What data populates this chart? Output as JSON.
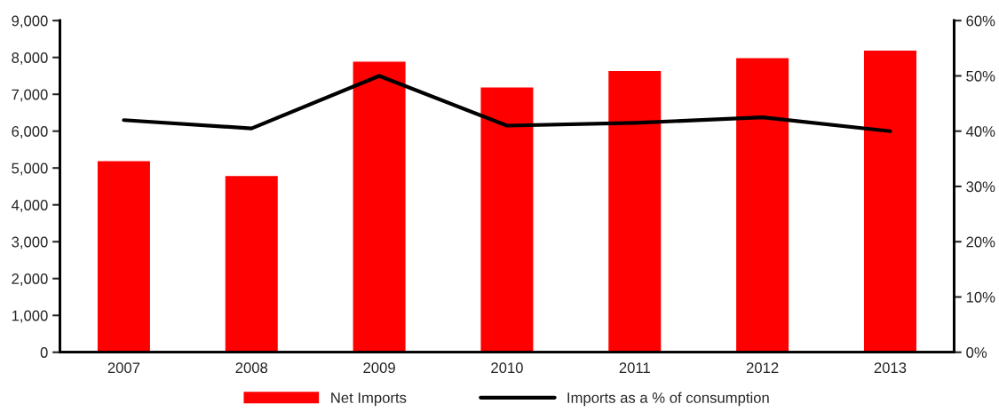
{
  "chart_data": {
    "type": "bar",
    "categories": [
      "2007",
      "2008",
      "2009",
      "2010",
      "2011",
      "2012",
      "2013"
    ],
    "series": [
      {
        "name": "Net Imports",
        "color": "#ff0000",
        "values": [
          5200,
          4800,
          7900,
          7200,
          7650,
          8000,
          8200
        ]
      },
      {
        "name": "Imports as a % of consumption",
        "type": "line",
        "axis": "y2",
        "color": "#000000",
        "values": [
          42,
          40.5,
          50,
          41,
          41.5,
          42.5,
          40
        ]
      }
    ],
    "ylim": [
      0,
      9000
    ],
    "yticks": [
      {
        "value": 0,
        "label": "0"
      },
      {
        "value": 1000,
        "label": "1,000"
      },
      {
        "value": 2000,
        "label": "2,000"
      },
      {
        "value": 3000,
        "label": "3,000"
      },
      {
        "value": 4000,
        "label": "4,000"
      },
      {
        "value": 5000,
        "label": "5,000"
      },
      {
        "value": 6000,
        "label": "6,000"
      },
      {
        "value": 7000,
        "label": "7,000"
      },
      {
        "value": 8000,
        "label": "8,000"
      },
      {
        "value": 9000,
        "label": "9,000"
      }
    ],
    "y2lim": [
      0,
      60
    ],
    "y2ticks": [
      {
        "value": 0,
        "label": "0%"
      },
      {
        "value": 10,
        "label": "10%"
      },
      {
        "value": 20,
        "label": "20%"
      },
      {
        "value": 30,
        "label": "30%"
      },
      {
        "value": 40,
        "label": "40%"
      },
      {
        "value": 50,
        "label": "50%"
      },
      {
        "value": 60,
        "label": "60%"
      }
    ],
    "legend": "bottom",
    "grid": false,
    "marker": "none",
    "line_style": "solid"
  }
}
